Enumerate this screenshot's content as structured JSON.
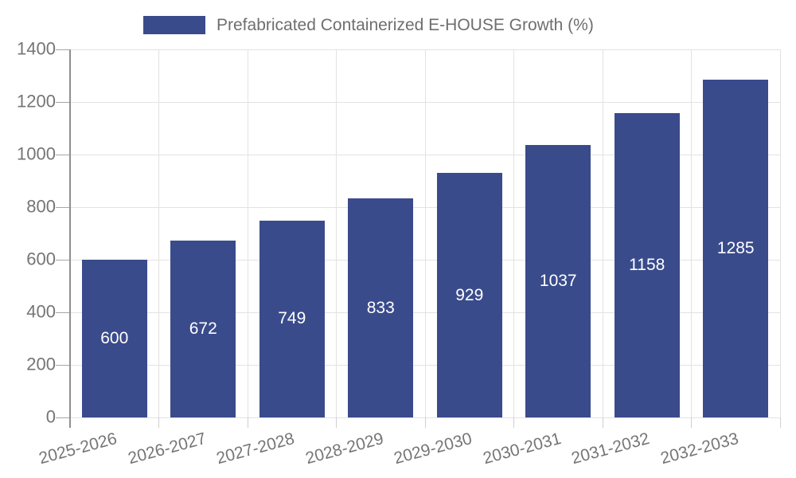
{
  "chart_data": {
    "type": "bar",
    "legend_label": "Prefabricated Containerized E-HOUSE Growth (%)",
    "legend_position": "top",
    "categories": [
      "2025-2026",
      "2026-2027",
      "2027-2028",
      "2028-2029",
      "2029-2030",
      "2030-2031",
      "2031-2032",
      "2032-2033"
    ],
    "values": [
      600,
      672,
      749,
      833,
      929,
      1037,
      1158,
      1285
    ],
    "yticks": [
      0,
      200,
      400,
      600,
      800,
      1000,
      1200,
      1400
    ],
    "ylim": [
      0,
      1400
    ],
    "grid": true,
    "x_label_rotation_deg": 15,
    "colors": {
      "bar": "#3A4B8C",
      "bar_label": "#FFFFFF",
      "axis": "#8F8F8F",
      "grid": "#E2E2E2",
      "y_tick": "#A6A6A6",
      "x_tick": "#CFCFCF",
      "tick_label": "#757575",
      "legend_text": "#6E6E6E",
      "background": "#FFFFFF"
    }
  }
}
